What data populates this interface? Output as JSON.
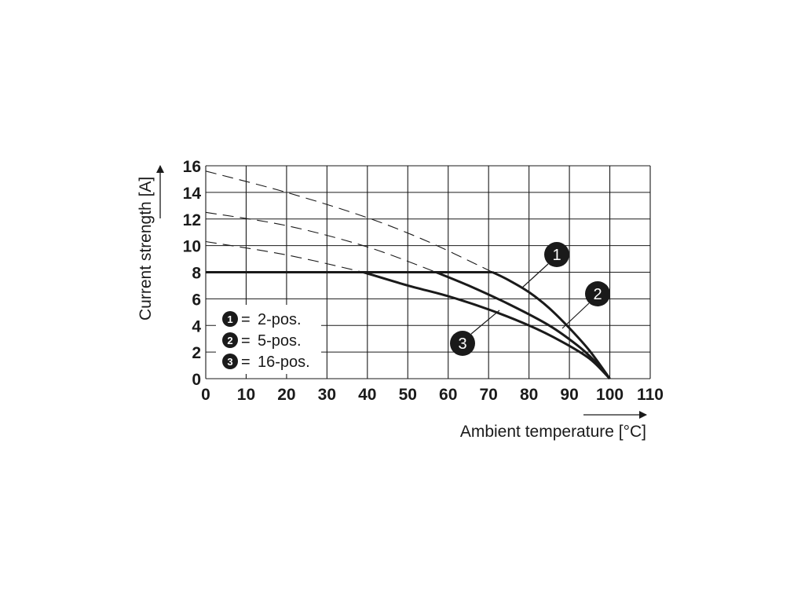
{
  "chart_data": {
    "type": "line",
    "xlabel": "Ambient temperature [°C]",
    "ylabel": "Current strength [A]",
    "xlim": [
      0,
      110
    ],
    "ylim": [
      0,
      16
    ],
    "x_ticks": [
      "0",
      "10",
      "20",
      "30",
      "40",
      "50",
      "60",
      "70",
      "80",
      "90",
      "100",
      "110"
    ],
    "y_ticks": [
      "0",
      "2",
      "4",
      "6",
      "8",
      "10",
      "12",
      "14",
      "16"
    ],
    "grid": true,
    "legend_position": "bottom-left",
    "rated_current": 8,
    "series": [
      {
        "name": "2-pos.",
        "badge": "1",
        "solid": [
          [
            0,
            8
          ],
          [
            71,
            8
          ],
          [
            75,
            7.4
          ],
          [
            80,
            6.5
          ],
          [
            85,
            5.3
          ],
          [
            90,
            3.8
          ],
          [
            95,
            2.1
          ],
          [
            100,
            0
          ]
        ],
        "dashed": [
          [
            0,
            15.6
          ],
          [
            20,
            14
          ],
          [
            40,
            12.1
          ],
          [
            55,
            10.3
          ],
          [
            71,
            8
          ]
        ]
      },
      {
        "name": "5-pos.",
        "badge": "2",
        "solid": [
          [
            0,
            8
          ],
          [
            57,
            8
          ],
          [
            65,
            7.0
          ],
          [
            75,
            5.6
          ],
          [
            85,
            4.0
          ],
          [
            92,
            2.5
          ],
          [
            96,
            1.4
          ],
          [
            100,
            0
          ]
        ],
        "dashed": [
          [
            0,
            12.5
          ],
          [
            20,
            11.5
          ],
          [
            40,
            9.9
          ],
          [
            57,
            8
          ]
        ]
      },
      {
        "name": "16-pos.",
        "badge": "3",
        "solid": [
          [
            0,
            8
          ],
          [
            39,
            8
          ],
          [
            50,
            7.0
          ],
          [
            60,
            6.2
          ],
          [
            70,
            5.2
          ],
          [
            80,
            4.0
          ],
          [
            88,
            2.8
          ],
          [
            95,
            1.5
          ],
          [
            100,
            0
          ]
        ],
        "dashed": [
          [
            0,
            10.3
          ],
          [
            20,
            9.3
          ],
          [
            39,
            8
          ]
        ]
      }
    ]
  }
}
